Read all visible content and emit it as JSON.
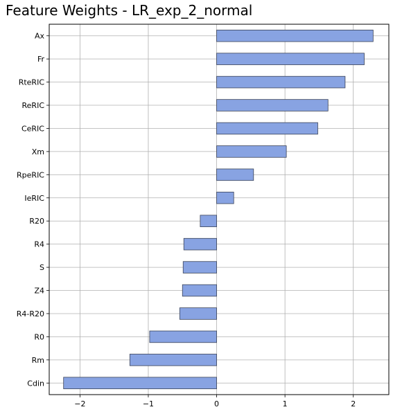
{
  "chart_data": {
    "type": "bar",
    "orientation": "horizontal",
    "title": "Feature Weights - LR_exp_2_normal",
    "xlabel": "",
    "ylabel": "",
    "categories": [
      "Ax",
      "Fr",
      "RteRIC",
      "ReRIC",
      "CeRIC",
      "Xm",
      "RpeRIC",
      "IeRIC",
      "R20",
      "R4",
      "S",
      "Z4",
      "R4-R20",
      "R0",
      "Rm",
      "Cdin"
    ],
    "values": [
      2.29,
      2.16,
      1.88,
      1.63,
      1.48,
      1.02,
      0.54,
      0.25,
      -0.24,
      -0.48,
      -0.49,
      -0.5,
      -0.54,
      -0.98,
      -1.27,
      -2.24
    ],
    "xlim": [
      -2.45,
      2.52
    ],
    "xticks": [
      -2,
      -1,
      0,
      1,
      2
    ],
    "xtick_labels": [
      "−2",
      "−1",
      "0",
      "1",
      "2"
    ],
    "grid": true,
    "legend": "none",
    "bar_color": "#88a3e2",
    "bar_edge_color": "#3a4257"
  }
}
